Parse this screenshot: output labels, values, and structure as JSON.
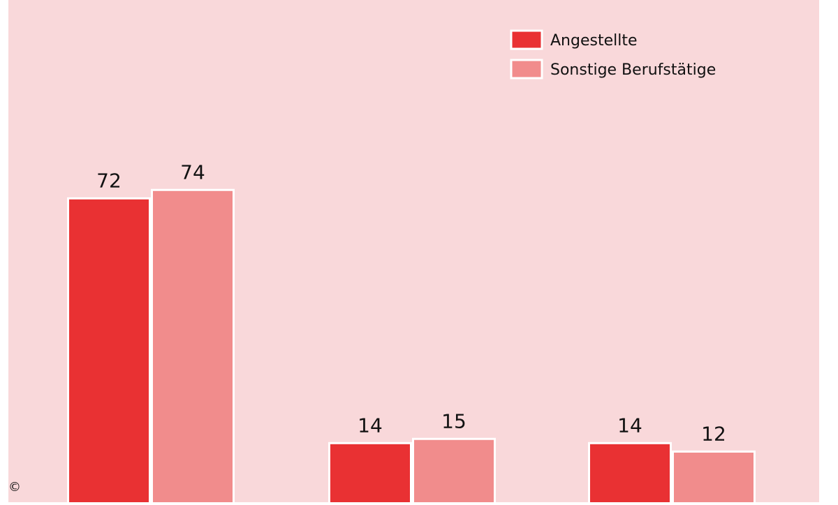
{
  "colors": {
    "page_background": "#ffffff",
    "plot_background": "#f9d8da",
    "series_1": "#e93133",
    "series_2": "#f18c8c",
    "bar_stroke": "#ffffff",
    "label_text": "#111111"
  },
  "copyright": "©",
  "chart_data": {
    "type": "bar",
    "categories": [
      "",
      "",
      ""
    ],
    "series": [
      {
        "name": "Angestellte",
        "values": [
          72,
          14,
          14
        ]
      },
      {
        "name": "Sonstige Berufstätige",
        "values": [
          74,
          15,
          12
        ]
      }
    ],
    "data_labels": true,
    "title": "",
    "xlabel": "",
    "ylabel": "",
    "ylim": [
      0,
      120
    ],
    "grid": false,
    "legend_position": "top-right"
  }
}
